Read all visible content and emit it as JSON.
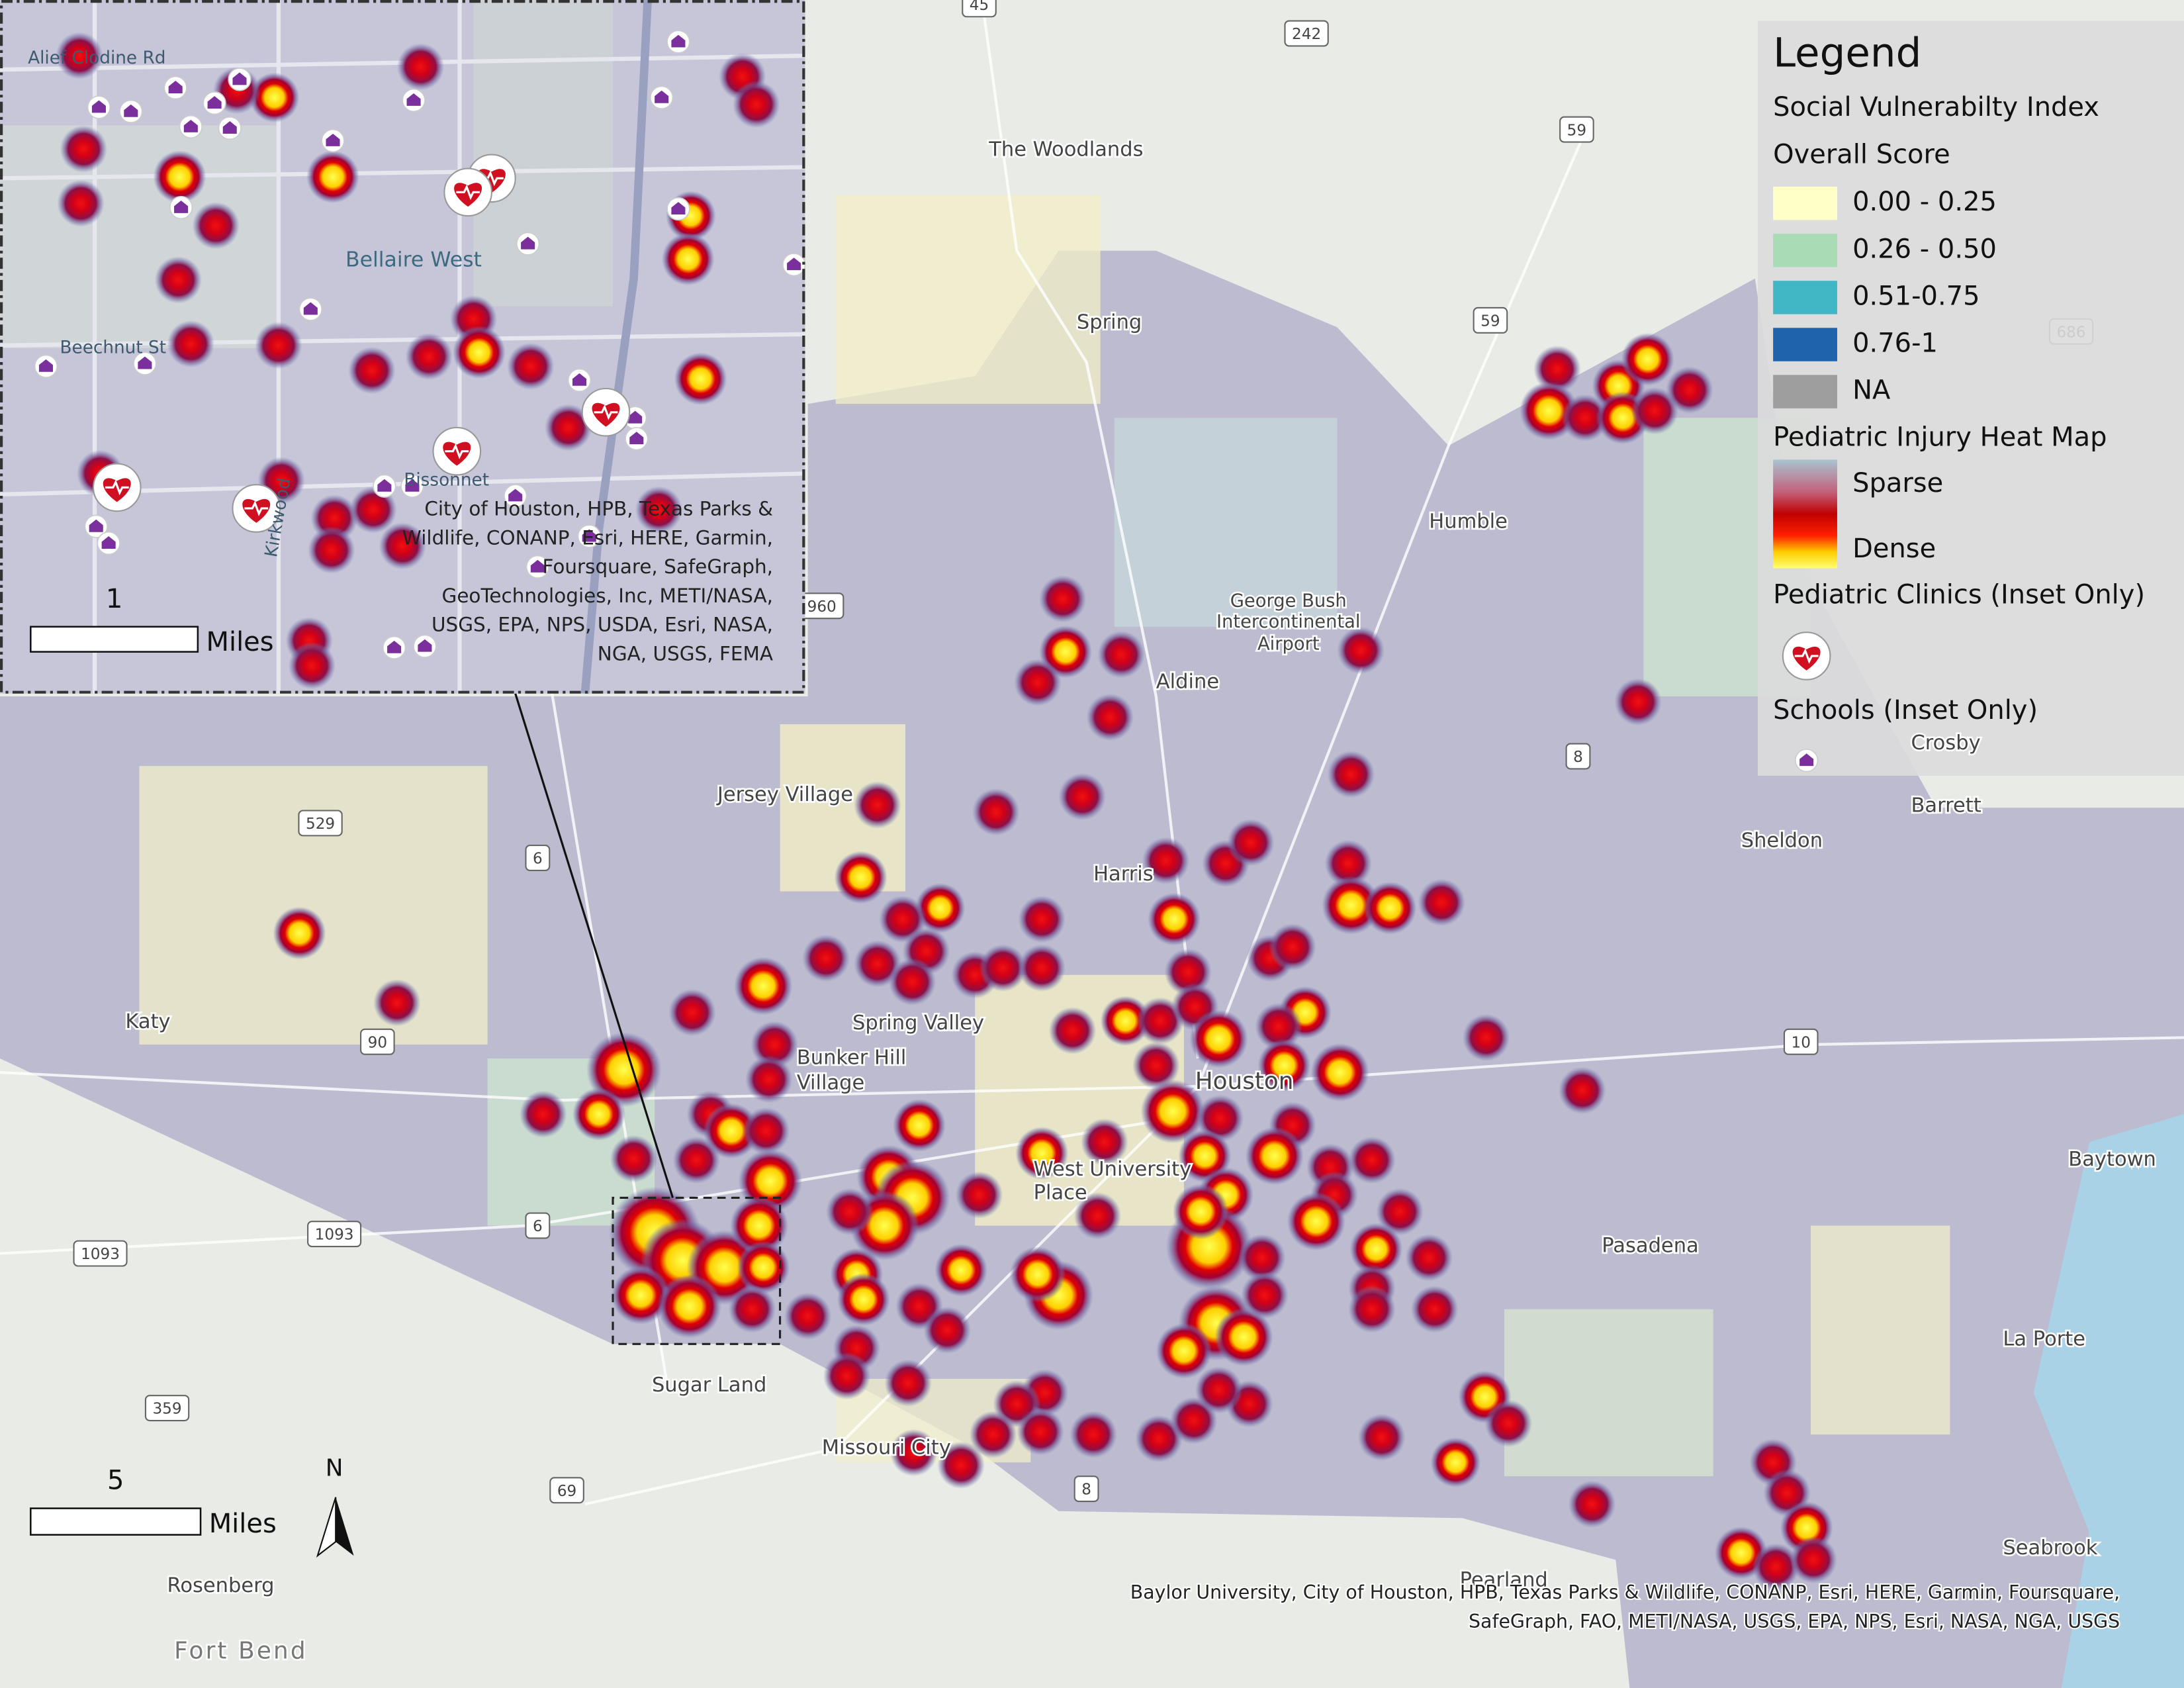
{
  "legend": {
    "title": "Legend",
    "subtitle": "Social Vulnerabilty Index",
    "svi_title": "Overall Score",
    "svi_classes": [
      {
        "label": "0.00 - 0.25",
        "color": "#ffffc8"
      },
      {
        "label": "0.26 - 0.50",
        "color": "#a8dcb4"
      },
      {
        "label": "0.51-0.75",
        "color": "#41b6c4"
      },
      {
        "label": "0.76-1",
        "color": "#1f63ad"
      },
      {
        "label": "NA",
        "color": "#9e9e9e"
      }
    ],
    "heat_title": "Pediatric Injury Heat Map",
    "heat_labels": [
      "Sparse",
      "Dense"
    ],
    "clinics": "Pediatric Clinics (Inset Only)",
    "schools": "Schools (Inset Only)"
  },
  "places": [
    "The Woodlands",
    "Spring",
    "Humble",
    "George Bush",
    "Intercontinental",
    "Airport",
    "Aldine",
    "Jersey Village",
    "Harris",
    "Spring Valley",
    "Bunker Hill",
    "Village",
    "Houston",
    "West University",
    "Place",
    "Pasadena",
    "Baytown",
    "La Porte",
    "Seabrook",
    "Sugar Land",
    "Missouri City",
    "Pearland",
    "Katy",
    "Rosenberg",
    "Fort Bend",
    "Sheldon",
    "Barrett",
    "Crosby"
  ],
  "road_shields": [
    "45",
    "242",
    "59",
    "59",
    "686",
    "960",
    "8",
    "529",
    "6",
    "90",
    "10",
    "6",
    "1093",
    "1093",
    "359",
    "69",
    "8"
  ],
  "inset": {
    "streets": [
      "Alief Clodine Rd",
      "Bellaire West",
      "Beechnut St",
      "Bissonnet",
      "Kirkwood"
    ],
    "attribution": [
      "City of Houston, HPB, Texas Parks &",
      "Wildlife, CONANP, Esri, HERE, Garmin,",
      "Foursquare, SafeGraph,",
      "GeoTechnologies, Inc, METI/NASA,",
      "USGS, EPA, NPS, USDA, Esri, NASA,",
      "NGA, USGS, FEMA"
    ],
    "scale": {
      "value": "1",
      "unit": "Miles"
    }
  },
  "scale": {
    "value": "5",
    "unit": "Miles"
  },
  "north": "N",
  "attribution": [
    "Baylor University, City of Houston, HPB, Texas Parks & Wildlife, CONANP, Esri, HERE, Garmin, Foursquare,",
    "SafeGraph, FAO, METI/NASA, USGS, EPA, NPS, Esri, NASA, NGA, USGS"
  ]
}
